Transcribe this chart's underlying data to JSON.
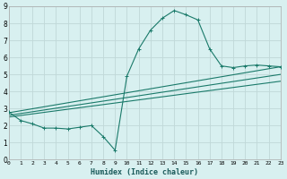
{
  "xlabel": "Humidex (Indice chaleur)",
  "xlim": [
    0,
    23
  ],
  "ylim": [
    0,
    9
  ],
  "xticks": [
    0,
    1,
    2,
    3,
    4,
    5,
    6,
    7,
    8,
    9,
    10,
    11,
    12,
    13,
    14,
    15,
    16,
    17,
    18,
    19,
    20,
    21,
    22,
    23
  ],
  "yticks": [
    0,
    1,
    2,
    3,
    4,
    5,
    6,
    7,
    8,
    9
  ],
  "bg_color": "#d8f0f0",
  "grid_color": "#c0d8d8",
  "line_color": "#1a7a6a",
  "main_line": {
    "x": [
      0,
      1,
      2,
      3,
      4,
      5,
      6,
      7,
      8,
      9,
      10,
      11,
      12,
      13,
      14,
      15,
      16,
      17,
      18,
      19,
      20,
      21,
      22,
      23
    ],
    "y": [
      2.8,
      2.3,
      2.1,
      1.85,
      1.85,
      1.8,
      1.9,
      2.0,
      1.35,
      0.55,
      4.9,
      6.5,
      7.6,
      8.3,
      8.75,
      8.5,
      8.2,
      6.5,
      5.5,
      5.4,
      5.5,
      5.55,
      5.5,
      5.45
    ]
  },
  "line2": {
    "x": [
      0,
      23
    ],
    "y": [
      2.75,
      5.45
    ]
  },
  "line3": {
    "x": [
      0,
      23
    ],
    "y": [
      2.6,
      5.0
    ]
  },
  "line4": {
    "x": [
      0,
      23
    ],
    "y": [
      2.5,
      4.6
    ]
  }
}
